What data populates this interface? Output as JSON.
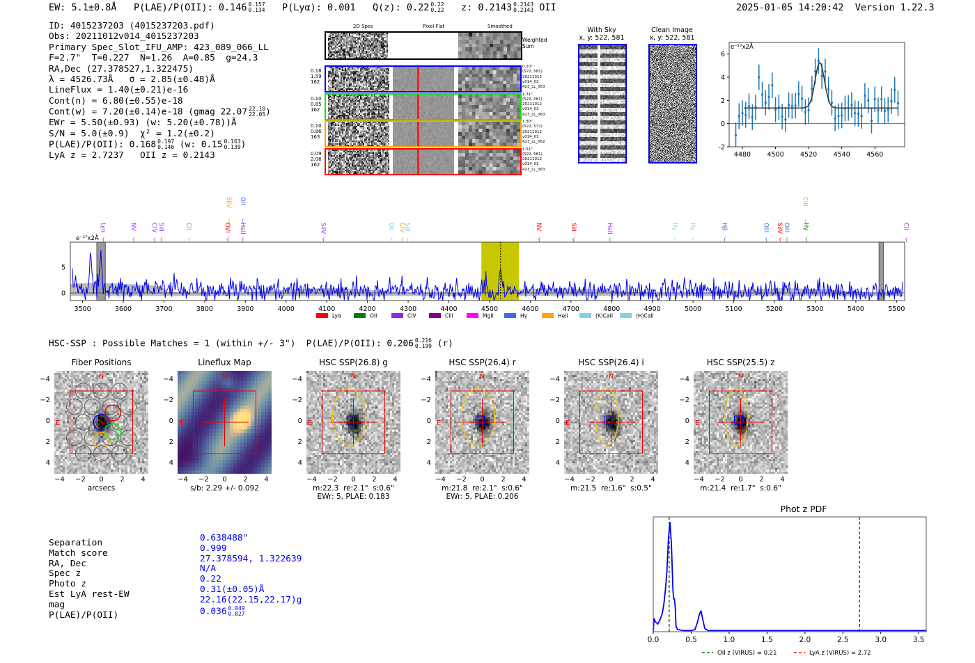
{
  "header": {
    "ew": "EW: 5.1±0.8Å",
    "plae_label": "P(LAE)/P(OII): 0.146",
    "plae_hi": "0.157",
    "plae_lo": "0.134",
    "plya": "P(Lyα): 0.001",
    "qz_label": "Q(z): 0.22",
    "qz_hi": "0.22",
    "qz_lo": "0.22",
    "z_label": "z: 0.2143",
    "z_hi": "0.2143",
    "z_lo": "0.2143",
    "z_line": "OII",
    "datetime": "2025-01-05 14:20:42",
    "version": "Version 1.22.3"
  },
  "info": {
    "id": "ID: 4015237203 (4015237203.pdf)",
    "obs": "Obs: 20211012v014_4015237203",
    "primary": "Primary Spec_Slot_IFU_AMP: 423_089_066_LL",
    "params": "F=2.7\"  T=0.227  N=1.26  A=0.85  g=24.3",
    "radec": "RA,Dec (27.378527,1.322475)",
    "lambda": "λ = 4526.73Å   σ = 2.85(±0.48)Å",
    "lineflux": "LineFlux = 1.40(±0.21)e-16",
    "contn": "Cont(n) = 6.80(±0.55)e-18",
    "contw": "Cont(w) = 7.20(±0.14)e-18 (gmag 22.07",
    "gmag_hi": "22.10",
    "gmag_lo": "22.05",
    "contw_close": ")",
    "ewr": "EWr = 5.50(±0.93) (w: 5.20(±0.78))Å",
    "sn": "S/N = 5.0(±0.9)  χ² = 1.2(±0.2)",
    "plae": "P(LAE)/P(OII): 0.168",
    "plae_hi": "0.197",
    "plae_lo": "0.146",
    "plae_w": "(w: 0.15",
    "plae_w_hi": "0.163",
    "plae_w_lo": "0.139",
    "plae_w_close": ")",
    "z": "LyA z = 2.7237   OII z = 0.2143"
  },
  "spec2d": {
    "col_titles": [
      "2D Spec",
      "Pixel Flat",
      "Smoothed"
    ],
    "sum_label": [
      "Weighted",
      "Sum"
    ],
    "rows": [
      {
        "color": "#0000ff",
        "left": [
          "0.18",
          "1.59",
          "162"
        ],
        "right": [
          "0.20\"",
          "(522, 581)",
          "20211012",
          "v014_02",
          "423_LL_063"
        ]
      },
      {
        "color": "#00ee00",
        "left": [
          "0.10",
          "0.85",
          "162"
        ],
        "right": [
          "1.31\"",
          "(522, 581)",
          "20211012",
          "v014_03",
          "423_LL_063"
        ]
      },
      {
        "color": "#ffa500",
        "left": [
          "0.10",
          "0.86",
          "163"
        ],
        "right": [
          "1.30\"",
          "(522, 572)",
          "20211012",
          "v014_01",
          "423_LL_062"
        ]
      },
      {
        "color": "#ff0000",
        "left": [
          "0.09",
          "2.06",
          "162"
        ],
        "right": [
          "1.51\"",
          "(522, 581)",
          "20211012",
          "v014_01",
          "423_LL_063"
        ]
      }
    ]
  },
  "sky": {
    "with_sky": [
      "With Sky",
      "x, y: 522, 581"
    ],
    "clean": [
      "Clean Image",
      "x, y: 522, 581"
    ]
  },
  "chart_data": [
    {
      "type": "scatter",
      "name": "line-fit",
      "unit_label": "e⁻¹⁷x2Å",
      "xlim": [
        4472,
        4578
      ],
      "ylim": [
        -2,
        7
      ],
      "xticks": [
        4480,
        4500,
        4520,
        4540,
        4560
      ],
      "yticks": [
        -2,
        0,
        2,
        4,
        6
      ],
      "x": [
        4476,
        4478,
        4480,
        4482,
        4484,
        4486,
        4488,
        4490,
        4492,
        4494,
        4496,
        4498,
        4500,
        4502,
        4504,
        4506,
        4508,
        4510,
        4512,
        4514,
        4516,
        4518,
        4520,
        4522,
        4524,
        4526,
        4528,
        4530,
        4532,
        4534,
        4536,
        4538,
        4540,
        4542,
        4544,
        4546,
        4548,
        4550,
        4552,
        4554,
        4556,
        4558,
        4560,
        4562,
        4564,
        4566,
        4568,
        4570,
        4572,
        4574
      ],
      "y": [
        -1.0,
        0.65,
        0.9,
        0.75,
        1.5,
        0.55,
        1.4,
        4.0,
        2.5,
        1.8,
        2.3,
        3.3,
        1.2,
        1.4,
        0.6,
        0.35,
        1.6,
        1.5,
        1.55,
        2.55,
        2.15,
        1.0,
        1.15,
        3.0,
        4.5,
        5.4,
        4.1,
        4.5,
        2.95,
        1.8,
        0.45,
        0.65,
        0.7,
        1.3,
        1.35,
        1.6,
        0.9,
        0.85,
        0.65,
        2.4,
        2.0,
        0.25,
        2.1,
        1.15,
        2.1,
        1.1,
        1.2,
        1.95,
        2.9,
        1.75
      ],
      "yerr": 1.1,
      "fit": {
        "center": 4526.73,
        "sigma": 2.85,
        "continuum": 1.35,
        "amplitude": 3.9,
        "xrange": [
          4481,
          4574
        ]
      }
    },
    {
      "type": "line",
      "name": "full-spectrum",
      "unit_label": "e⁻¹⁷x2Å",
      "xlim": [
        3470,
        5520
      ],
      "ylim": [
        -1.5,
        9.9
      ],
      "xticks": [
        3500,
        3600,
        3700,
        3800,
        3900,
        4000,
        4100,
        4200,
        4300,
        4400,
        4500,
        4600,
        4700,
        4800,
        4900,
        5000,
        5100,
        5200,
        5300,
        5400,
        5500
      ],
      "yticks": [
        0,
        5
      ],
      "noise_sigma": 1.1,
      "features": [
        {
          "x": 3520,
          "y": 8.5
        },
        {
          "x": 3545,
          "y": 7.5
        },
        {
          "x": 4527,
          "y": 5.4
        }
      ],
      "highlight_band": [
        4480,
        4572
      ],
      "line_marker": 4527,
      "masked": [
        [
          3535,
          3556
        ],
        [
          5457,
          5468
        ]
      ],
      "legend": [
        {
          "label": "Lyα",
          "color": "#ff0000"
        },
        {
          "label": "OII",
          "color": "#008000"
        },
        {
          "label": "CIV",
          "color": "#8a2be2"
        },
        {
          "label": "CIII",
          "color": "#800080"
        },
        {
          "label": "MgII",
          "color": "#ff00ff"
        },
        {
          "label": "Hγ",
          "color": "#4169e1"
        },
        {
          "label": "HeII",
          "color": "#ffa500"
        },
        {
          "label": "(K)CaII",
          "color": "#87ceeb"
        },
        {
          "label": "(H)CaII",
          "color": "#87ceeb"
        }
      ],
      "line_labels": [
        {
          "label": "Lyα",
          "x": 3551,
          "row": 0,
          "color": "#9933ff"
        },
        {
          "label": "NV",
          "x": 3626,
          "row": 0,
          "color": "#9933ff"
        },
        {
          "label": "CIV",
          "x": 3677,
          "row": 0,
          "color": "#9933ff"
        },
        {
          "label": "SiII",
          "x": 3694,
          "row": 0,
          "color": "#9933ff"
        },
        {
          "label": "CII",
          "x": 3762,
          "row": 0,
          "color": "#ff44ff"
        },
        {
          "label": "OVI",
          "x": 3857,
          "row": 0,
          "color": "#ff0000"
        },
        {
          "label": "HeII",
          "x": 3894,
          "row": 0,
          "color": "#aa33aa"
        },
        {
          "label": "SiIV",
          "x": 3860,
          "row": 1,
          "color": "#ffa500"
        },
        {
          "label": "OII",
          "x": 3894,
          "row": 1,
          "color": "#4169e1"
        },
        {
          "label": "SiIV",
          "x": 4092,
          "row": 0,
          "color": "#9933ff"
        },
        {
          "label": "OII",
          "x": 4259,
          "row": 0,
          "color": "#87ceeb"
        },
        {
          "label": "CIV",
          "x": 4286,
          "row": 0,
          "color": "#ffa500"
        },
        {
          "label": "SiII",
          "x": 4299,
          "row": 0,
          "color": "#87ceeb"
        },
        {
          "label": "NV",
          "x": 4622,
          "row": 0,
          "color": "#ff0000"
        },
        {
          "label": "SiII",
          "x": 4707,
          "row": 0,
          "color": "#ff0000"
        },
        {
          "label": "HeII",
          "x": 4796,
          "row": 0,
          "color": "#9933ff"
        },
        {
          "label": "Hγ",
          "x": 4956,
          "row": 0,
          "color": "#87ceeb"
        },
        {
          "label": "Hγ",
          "x": 5000,
          "row": 0,
          "color": "#87ceeb"
        },
        {
          "label": "Hβ",
          "x": 5078,
          "row": 0,
          "color": "#4169e1"
        },
        {
          "label": "OIII",
          "x": 5180,
          "row": 0,
          "color": "#4169e1"
        },
        {
          "label": "SiIV",
          "x": 5214,
          "row": 0,
          "color": "#ff0000"
        },
        {
          "label": "OIII",
          "x": 5231,
          "row": 0,
          "color": "#4169e1"
        },
        {
          "label": "Hγ",
          "x": 5279,
          "row": 0,
          "color": "#008000"
        },
        {
          "label": "CIII",
          "x": 5276,
          "row": 1,
          "color": "#ffa500"
        },
        {
          "label": "CII",
          "x": 5524,
          "row": 0,
          "color": "#aa33aa"
        }
      ]
    },
    {
      "type": "line",
      "name": "phot-z-pdf",
      "title": "Phot z PDF",
      "xlim": [
        0,
        3.6
      ],
      "ylim": [
        0,
        1.05
      ],
      "xticks": [
        "0.0",
        "0.5",
        "1.0",
        "1.5",
        "2.0",
        "2.5",
        "3.0",
        "3.5"
      ],
      "x": [
        0,
        0.01,
        0.03,
        0.06,
        0.09,
        0.12,
        0.14,
        0.16,
        0.18,
        0.2,
        0.22,
        0.24,
        0.26,
        0.27,
        0.28,
        0.29,
        0.3,
        0.32,
        0.4,
        0.5,
        0.55,
        0.58,
        0.61,
        0.63,
        0.65,
        0.68,
        0.72,
        1.0,
        3.6
      ],
      "y": [
        0.0,
        0.12,
        0.09,
        0.07,
        0.11,
        0.17,
        0.25,
        0.38,
        0.55,
        0.85,
        1.0,
        0.8,
        0.38,
        0.3,
        0.3,
        0.22,
        0.05,
        0.02,
        0.01,
        0.01,
        0.02,
        0.08,
        0.16,
        0.19,
        0.12,
        0.03,
        0.01,
        0.01,
        0.01
      ],
      "vlines": [
        {
          "x": 0.21,
          "color": "#008000",
          "label": "OII z (VIRUS) = 0.21"
        },
        {
          "x": 2.72,
          "color": "#ff0000",
          "label": "LyA z (VIRUS) = 2.72"
        }
      ]
    }
  ],
  "hsc": {
    "summary": "HSC-SSP : Possible Matches = 1 (within +/- 3\")  P(LAE)/P(OII): 0.206",
    "summary_hi": "0.216",
    "summary_lo": "0.199",
    "summary_band": "(r)",
    "ticks": [
      "−4",
      "−2",
      "0",
      "2",
      "4"
    ],
    "north": "N",
    "east": "E",
    "panels": [
      {
        "title": "Fiber Positions",
        "kind": "fibers",
        "caption": [
          "arcsecs"
        ]
      },
      {
        "title": "Lineflux Map",
        "kind": "lineflux",
        "caption": [
          "s/b: 2.29 +/- 0.092"
        ]
      },
      {
        "title": "HSC SSP(26.8) g",
        "kind": "cutout",
        "caption": [
          "m:22.3  re:2.1\"  s:0.6\"",
          "EWr: 5, PLAE: 0.183"
        ]
      },
      {
        "title": "HSC SSP(26.4) r",
        "kind": "cutout",
        "caption": [
          "m:21.8  re:2.1\"  s:0.6\"",
          "EWr: 5, PLAE: 0.206"
        ]
      },
      {
        "title": "HSC SSP(26.4) i",
        "kind": "cutout",
        "caption": [
          "m:21.5  re:1.6\"  s:0.5\""
        ]
      },
      {
        "title": "HSC SSP(25.5) z",
        "kind": "cutout",
        "caption": [
          "m:21.4  re:1.7\"  s:0.6\""
        ]
      }
    ]
  },
  "match_table": {
    "rows": [
      {
        "label": "Separation",
        "value": "0.638488\""
      },
      {
        "label": "Match score",
        "value": "0.999"
      },
      {
        "label": "RA, Dec",
        "value": "27.378594, 1.322639"
      },
      {
        "label": "Spec z",
        "value": "N/A"
      },
      {
        "label": "Photo z",
        "value": "0.22"
      },
      {
        "label": "Est LyA rest-EW",
        "value": "0.31(±0.05)Å"
      },
      {
        "label": "mag",
        "value": "22.16(22.15,22.17)g"
      },
      {
        "label": "P(LAE)/P(OII)",
        "value": "0.036",
        "hi": "0.049",
        "lo": "0.027"
      }
    ]
  }
}
